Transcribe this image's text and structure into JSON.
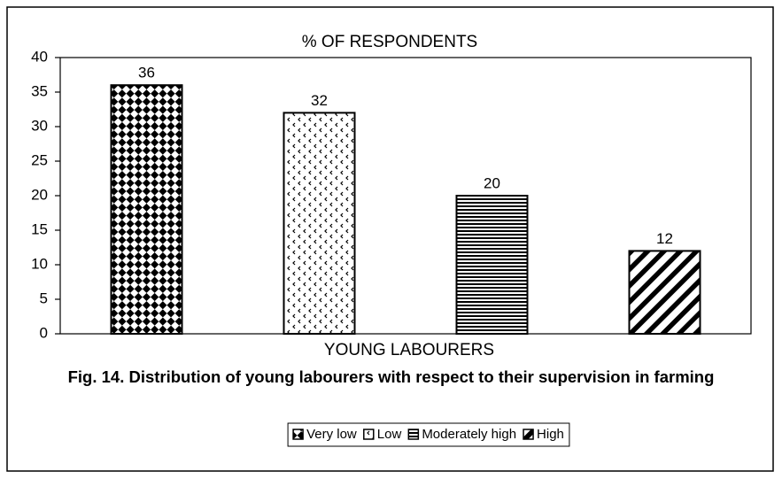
{
  "chart_data": {
    "type": "bar",
    "title": "% OF RESPONDENTS",
    "x_label": "YOUNG LABOURERS",
    "caption": "Fig. 14. Distribution of young labourers with respect to their supervision in farming",
    "categories": [
      null
    ],
    "series": [
      {
        "name": "Very low",
        "color": "#000000",
        "pattern": "diamond",
        "values": [
          36
        ]
      },
      {
        "name": "Low",
        "color": "#000000",
        "pattern": "dots",
        "values": [
          32
        ]
      },
      {
        "name": "Moderately high",
        "color": "#000000",
        "pattern": "hlines",
        "values": [
          20
        ]
      },
      {
        "name": "High",
        "color": "#000000",
        "pattern": "diagonal",
        "values": [
          12
        ]
      }
    ],
    "ylim": [
      0,
      40
    ],
    "yticks": [
      0,
      5,
      10,
      15,
      20,
      25,
      30,
      35,
      40
    ],
    "grid": false,
    "legend": "bottom"
  }
}
